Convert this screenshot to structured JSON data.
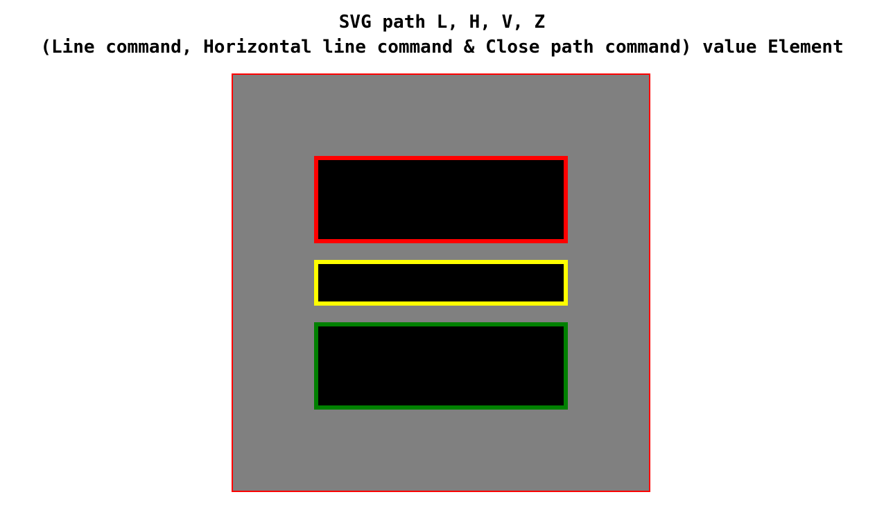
{
  "heading": {
    "line1": "SVG path L, H, V, Z",
    "line2": "(Line command, Horizontal line command & Close path command) value Element"
  },
  "svg": {
    "background": "#808080",
    "border": "#ff0000",
    "paths": [
      {
        "name": "red-outlined-rect",
        "fill": "#000000",
        "stroke": "#ff0000"
      },
      {
        "name": "yellow-outlined-rect",
        "fill": "#000000",
        "stroke": "#ffff00"
      },
      {
        "name": "green-outlined-rect",
        "fill": "#000000",
        "stroke": "#008000"
      }
    ]
  }
}
